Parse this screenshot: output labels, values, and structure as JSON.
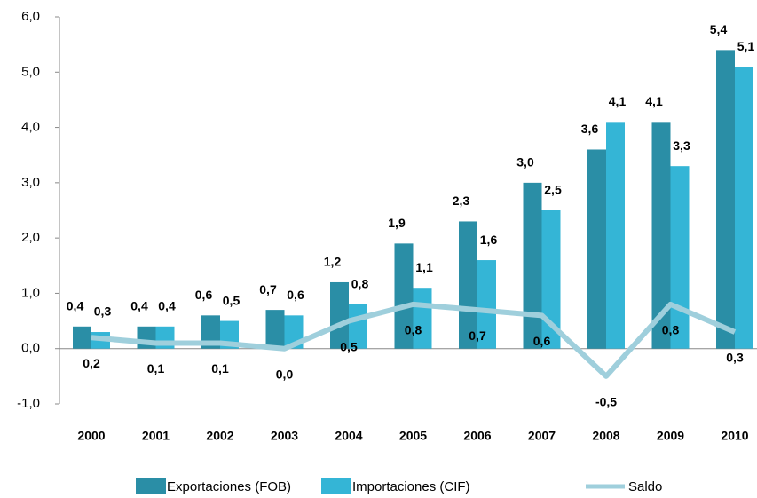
{
  "chart_data": {
    "type": "bar_line",
    "categories": [
      "2000",
      "2001",
      "2002",
      "2003",
      "2004",
      "2005",
      "2006",
      "2007",
      "2008",
      "2009",
      "2010"
    ],
    "series": [
      {
        "name": "Exportaciones (FOB)",
        "color": "#2a8ea6",
        "type": "bar",
        "values": [
          0.4,
          0.4,
          0.6,
          0.7,
          1.2,
          1.9,
          2.3,
          3.0,
          3.6,
          4.1,
          5.4
        ],
        "value_labels": [
          "0,4",
          "0,4",
          "0,6",
          "0,7",
          "1,2",
          "1,9",
          "2,3",
          "3,0",
          "3,6",
          "4,1",
          "5,4"
        ]
      },
      {
        "name": "Importaciones (CIF)",
        "color": "#34b5d6",
        "type": "bar",
        "values": [
          0.3,
          0.4,
          0.5,
          0.6,
          0.8,
          1.1,
          1.6,
          2.5,
          4.1,
          3.3,
          5.1
        ],
        "value_labels": [
          "0,3",
          "0,4",
          "0,5",
          "0,6",
          "0,8",
          "1,1",
          "1,6",
          "2,5",
          "4,1",
          "3,3",
          "5,1"
        ]
      },
      {
        "name": "Saldo",
        "color": "#9fcfdc",
        "type": "line",
        "values": [
          0.2,
          0.1,
          0.1,
          0.0,
          0.5,
          0.8,
          0.7,
          0.6,
          -0.5,
          0.8,
          0.3
        ],
        "value_labels": [
          "0,2",
          "0,1",
          "0,1",
          "0,0",
          "0,5",
          "0,8",
          "0,7",
          "0,6",
          "-0,5",
          "0,8",
          "0,3"
        ]
      }
    ],
    "ylim": [
      -1,
      6
    ],
    "yticks": [
      {
        "value": -1,
        "label": "-1,0"
      },
      {
        "value": 0,
        "label": "0,0"
      },
      {
        "value": 1,
        "label": "1,0"
      },
      {
        "value": 2,
        "label": "2,0"
      },
      {
        "value": 3,
        "label": "3,0"
      },
      {
        "value": 4,
        "label": "4,0"
      },
      {
        "value": 5,
        "label": "5,0"
      },
      {
        "value": 6,
        "label": "6,0"
      }
    ],
    "legend": "bottom"
  }
}
